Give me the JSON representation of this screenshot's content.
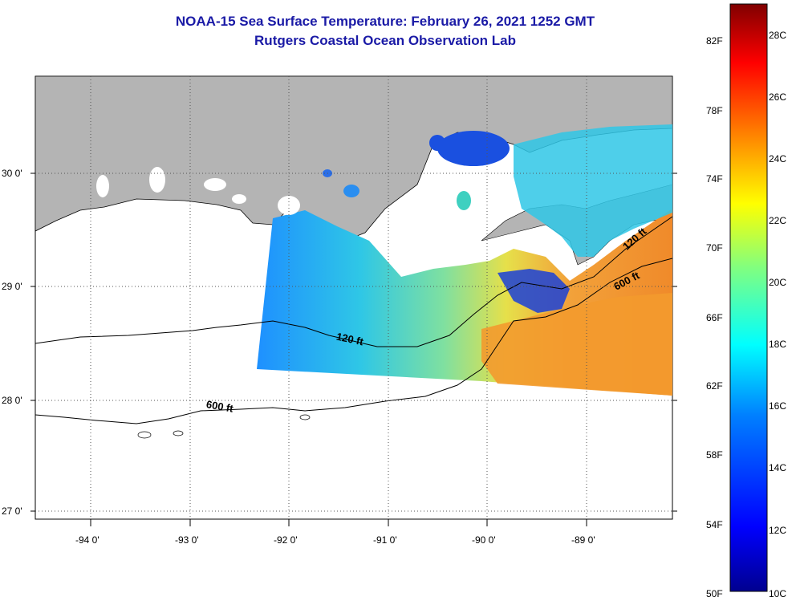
{
  "title": {
    "line1": "NOAA-15 Sea Surface Temperature:  February 26, 2021 1252 GMT",
    "line2": "Rutgers Coastal Ocean Observation Lab"
  },
  "map": {
    "latitude_labels": [
      "30 0'",
      "29 0'",
      "28 0'",
      "27 0'"
    ],
    "longitude_labels": [
      "-94 0'",
      "-93 0'",
      "-92 0'",
      "-91 0'",
      "-90 0'",
      "-89 0'"
    ],
    "contour_labels": [
      "120 ft",
      "120 ft",
      "600 ft",
      "600 ft"
    ],
    "colors": {
      "land": "#b4b4b4",
      "ocean_no_data": "#ffffff",
      "contour": "#000000"
    }
  },
  "colorbar": {
    "fahrenheit_labels": [
      "82F",
      "78F",
      "74F",
      "70F",
      "66F",
      "62F",
      "58F",
      "54F",
      "50F"
    ],
    "celsius_labels": [
      "28C",
      "26C",
      "24C",
      "22C",
      "20C",
      "18C",
      "16C",
      "14C",
      "12C",
      "10C"
    ],
    "gradient_stops": [
      "#00008f",
      "#0000ff",
      "#0080ff",
      "#00ffff",
      "#80ff80",
      "#ffff00",
      "#ff8000",
      "#ff0000",
      "#800000"
    ]
  }
}
